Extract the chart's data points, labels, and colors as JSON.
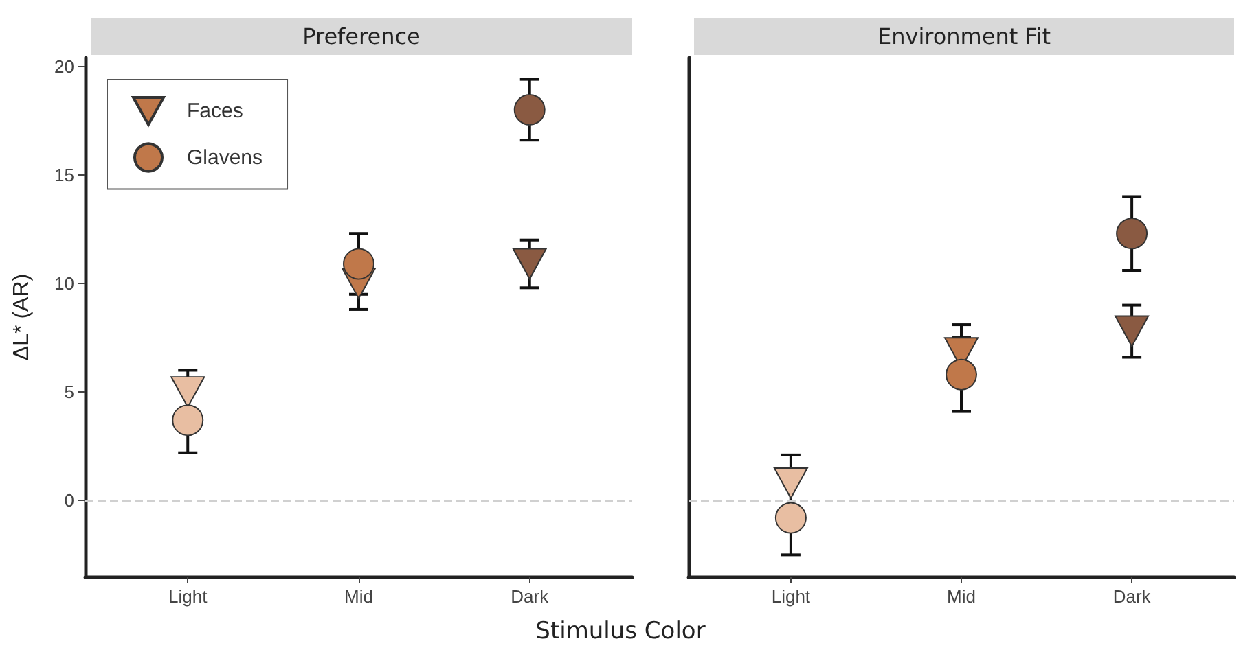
{
  "chart_data": [
    {
      "type": "scatter",
      "title": "Preference",
      "ylabel": "ΔL* (AR)",
      "xlabel": "Stimulus Color",
      "categories": [
        "Light",
        "Mid",
        "Dark"
      ],
      "ylim": [
        -3.5,
        20.4
      ],
      "yticks": [
        0,
        5,
        10,
        15,
        20
      ],
      "grid": false,
      "legend": "top left",
      "series": [
        {
          "name": "Faces",
          "marker": "triangle",
          "color": "#c0784a",
          "colors": [
            "#e8bea2",
            "#c0784a",
            "#8a5a42"
          ],
          "values": [
            5.0,
            10.0,
            10.9
          ],
          "errors": [
            1.0,
            1.2,
            1.1
          ]
        },
        {
          "name": "Glavens",
          "marker": "circle",
          "color": "#c0784a",
          "colors": [
            "#e8bea2",
            "#c0784a",
            "#8a5a42"
          ],
          "values": [
            3.7,
            10.9,
            18.0
          ],
          "errors": [
            1.5,
            1.4,
            1.4
          ]
        }
      ],
      "ref_lines": [
        {
          "axis": "y",
          "value": 0,
          "color": "#d0d0d0",
          "line_style": "dashed"
        }
      ]
    },
    {
      "type": "scatter",
      "title": "Environment Fit",
      "categories": [
        "Light",
        "Mid",
        "Dark"
      ],
      "ylim": [
        -3.5,
        20.4
      ],
      "yticks": [
        0,
        5,
        10,
        15,
        20
      ],
      "grid": false,
      "legend": false,
      "tick_labels": "x",
      "series": [
        {
          "marker": "triangle",
          "colors": [
            "#e8bea2",
            "#c0784a",
            "#8a5a42"
          ],
          "values": [
            0.8,
            6.8,
            7.8
          ],
          "errors": [
            1.3,
            1.3,
            1.2
          ]
        },
        {
          "marker": "circle",
          "colors": [
            "#e8bea2",
            "#c0784a",
            "#8a5a42"
          ],
          "values": [
            -0.8,
            5.8,
            12.3
          ],
          "errors": [
            1.7,
            1.7,
            1.7
          ]
        }
      ],
      "ref_lines": [
        {
          "axis": "y",
          "value": 0,
          "color": "#d0d0d0",
          "line_style": "dashed"
        }
      ]
    }
  ]
}
